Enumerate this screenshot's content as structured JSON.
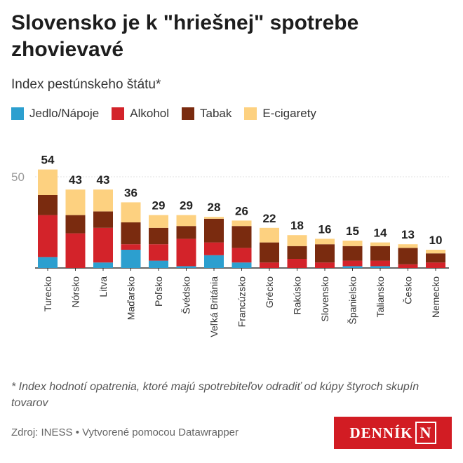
{
  "title": "Slovensko je k \"hriešnej\" spotrebe zhovievavé",
  "subtitle": "Index pestúnskeho štátu*",
  "legend": [
    {
      "label": "Jedlo/Nápoje",
      "color": "#2c9fcf"
    },
    {
      "label": "Alkohol",
      "color": "#d3232a"
    },
    {
      "label": "Tabak",
      "color": "#7a2b0f"
    },
    {
      "label": "E-cigarety",
      "color": "#fdd180"
    }
  ],
  "chart_data": {
    "type": "bar",
    "stacked": true,
    "categories": [
      "Turecko",
      "Nórsko",
      "Litva",
      "Maďarsko",
      "Poľsko",
      "Švédsko",
      "Veľká Británia",
      "Francúzsko",
      "Grécko",
      "Rakúsko",
      "Slovensko",
      "Španielsko",
      "Taliansko",
      "Česko",
      "Nemecko"
    ],
    "totals": [
      54,
      43,
      43,
      36,
      29,
      29,
      28,
      26,
      22,
      18,
      16,
      15,
      14,
      13,
      10
    ],
    "series": [
      {
        "name": "Jedlo/Nápoje",
        "values": [
          6,
          0,
          3,
          10,
          4,
          1,
          7,
          3,
          0,
          0,
          0,
          1,
          1,
          0,
          0
        ]
      },
      {
        "name": "Alkohol",
        "values": [
          23,
          19,
          19,
          3,
          9,
          15,
          7,
          8,
          3,
          5,
          3,
          3,
          3,
          2,
          3
        ]
      },
      {
        "name": "Tabak",
        "values": [
          11,
          10,
          9,
          12,
          9,
          7,
          13,
          12,
          11,
          7,
          10,
          8,
          8,
          9,
          5
        ]
      },
      {
        "name": "E-cigarety",
        "values": [
          14,
          14,
          12,
          11,
          7,
          6,
          1,
          3,
          8,
          6,
          3,
          3,
          2,
          2,
          2
        ]
      }
    ],
    "yticks": [
      50
    ],
    "ylim": [
      0,
      55
    ],
    "grid": true
  },
  "note": "* Index hodnotí opatrenia, ktoré majú spotrebiteľov odradiť od kúpy štyroch skupín tovarov",
  "source": "Zdroj: INESS • Vytvorené pomocou Datawrapper",
  "logo": {
    "text": "DENNÍK",
    "letter": "N"
  }
}
